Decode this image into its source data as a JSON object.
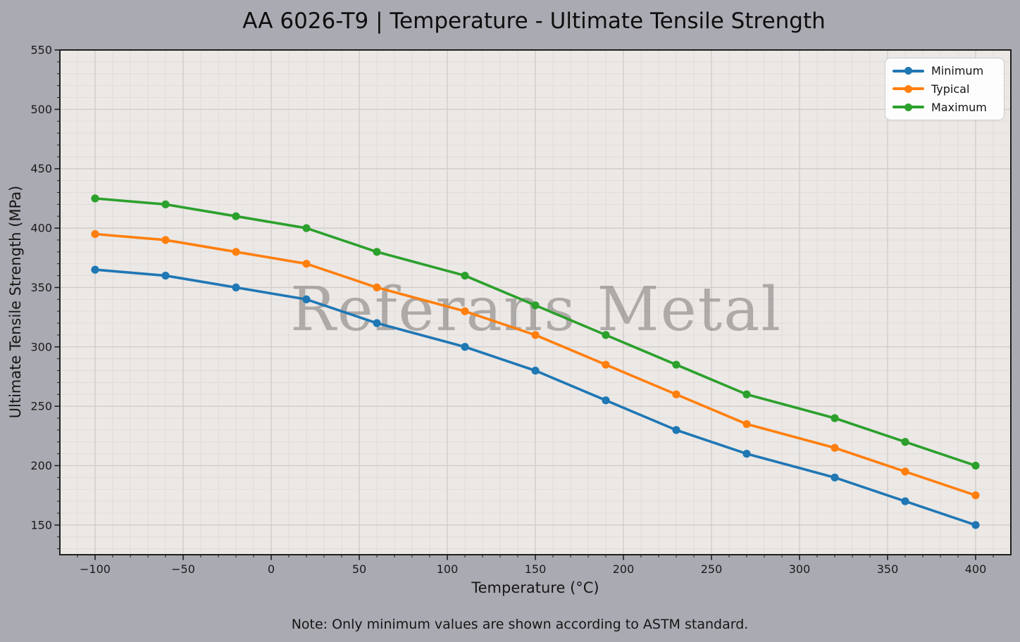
{
  "title": "AA 6026-T9 | Temperature - Ultimate Tensile Strength",
  "note": "Note: Only minimum values are shown according to ASTM standard.",
  "watermark": "Referans Metal",
  "chart_data": {
    "type": "line",
    "title": "AA 6026-T9 | Temperature - Ultimate Tensile Strength",
    "xlabel": "Temperature (°C)",
    "ylabel": "Ultimate Tensile Strength (MPa)",
    "x": [
      -100,
      -60,
      -20,
      20,
      60,
      110,
      150,
      190,
      230,
      270,
      320,
      360,
      400
    ],
    "series": [
      {
        "name": "Minimum",
        "color": "#1f77b4",
        "values": [
          365,
          360,
          350,
          340,
          320,
          300,
          280,
          255,
          230,
          210,
          190,
          170,
          150
        ]
      },
      {
        "name": "Typical",
        "color": "#ff7f0e",
        "values": [
          395,
          390,
          380,
          370,
          350,
          330,
          310,
          285,
          260,
          235,
          215,
          195,
          175
        ]
      },
      {
        "name": "Maximum",
        "color": "#2ca02c",
        "values": [
          425,
          420,
          410,
          400,
          380,
          360,
          335,
          310,
          285,
          260,
          240,
          220,
          200
        ]
      }
    ],
    "xlim": [
      -120,
      420
    ],
    "ylim": [
      125,
      550
    ],
    "x_ticks": [
      -100,
      -50,
      0,
      50,
      100,
      150,
      200,
      250,
      300,
      350,
      400
    ],
    "y_ticks": [
      150,
      200,
      250,
      300,
      350,
      400,
      450,
      500,
      550
    ],
    "minor_step_x": 10,
    "minor_step_y": 10,
    "grid": "major+minor",
    "legend_position": "upper right",
    "marker": "circle"
  },
  "style_colors": {
    "figure_background": "#aaaab2",
    "plot_background": "#ebe8e6",
    "grid_minor": "#dfdbd8",
    "grid_major": "#cfcbc8",
    "axis": "#1f1f1f",
    "tick_label": "#1a1a1a",
    "watermark": "#827f7d"
  }
}
